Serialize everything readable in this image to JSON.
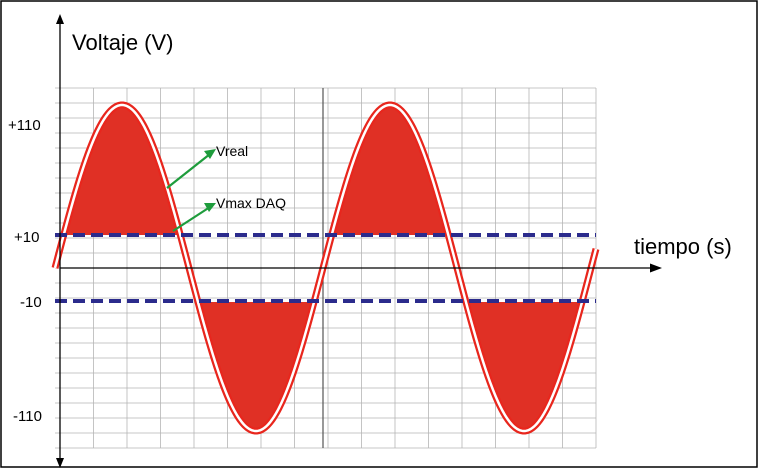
{
  "title": "Voltaje (V)",
  "x_axis_label": "tiempo (s)",
  "y_tick_labels": [
    "+110",
    "+10",
    "-10",
    "-110"
  ],
  "annotations": {
    "real": "Vreal",
    "daq": "Vmax DAQ"
  },
  "colors": {
    "signal": "#e8261d",
    "fill": "#e03025",
    "limit": "#2b2b8c",
    "arrow": "#1e9c3c",
    "grid": "#b5b5b5"
  }
}
